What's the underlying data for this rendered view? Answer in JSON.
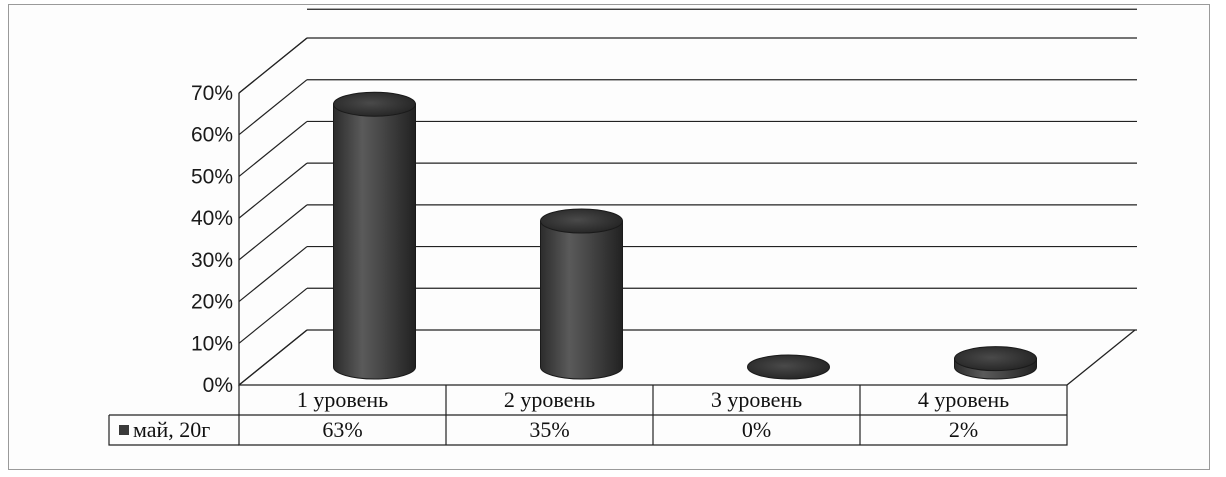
{
  "chart_data": {
    "type": "bar",
    "style": "3d-cylinder",
    "categories": [
      "1 уровень",
      "2 уровень",
      "3 уровень",
      "4 уровень"
    ],
    "series": [
      {
        "name": "май, 20г",
        "values": [
          63,
          35,
          0,
          2
        ],
        "labels": [
          "63%",
          "35%",
          "0%",
          "2%"
        ],
        "color": "#3a3a3a"
      }
    ],
    "ylim": [
      0,
      70
    ],
    "yticks": [
      0,
      10,
      20,
      30,
      40,
      50,
      60,
      70
    ],
    "ytick_labels": [
      "0%",
      "10%",
      "20%",
      "30%",
      "40%",
      "50%",
      "60%",
      "70%"
    ],
    "grid": true,
    "legend": "data-table-left",
    "title": "",
    "xlabel": "",
    "ylabel": ""
  }
}
